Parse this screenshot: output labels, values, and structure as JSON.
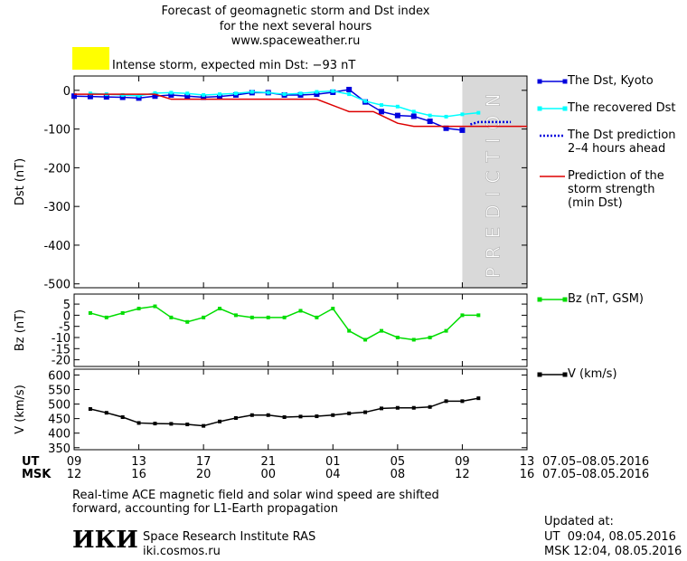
{
  "header": {
    "title": "Forecast of geomagnetic storm and Dst index",
    "subtitle": "for the next several hours",
    "url": "www.spaceweather.ru",
    "storm_label": "Intense storm, expected min Dst: −93 nT",
    "storm_color": "#ffff00"
  },
  "chart_data": [
    {
      "type": "line",
      "ylabel": "Dst (nT)",
      "xlim": [
        0,
        28
      ],
      "ylim": [
        -510,
        37
      ],
      "yticks": [
        0,
        -100,
        -200,
        -300,
        -400,
        -500
      ],
      "prediction_zone": {
        "from": 24,
        "to": 28,
        "label": "PREDICTION"
      },
      "series": [
        {
          "name": "The Dst, Kyoto",
          "color": "#0000dd",
          "marker": "square",
          "x": [
            0,
            1,
            2,
            3,
            4,
            5,
            6,
            7,
            8,
            9,
            10,
            11,
            12,
            13,
            14,
            15,
            16,
            17,
            18,
            19,
            20,
            21,
            22,
            23,
            24
          ],
          "values": [
            -15,
            -16,
            -17,
            -18,
            -20,
            -15,
            -12,
            -15,
            -18,
            -16,
            -12,
            -6,
            -6,
            -12,
            -12,
            -10,
            -5,
            2,
            -30,
            -55,
            -65,
            -67,
            -80,
            -98,
            -103
          ]
        },
        {
          "name": "The recovered Dst",
          "color": "#00ffff",
          "marker": "square",
          "x": [
            1,
            2,
            3,
            4,
            5,
            6,
            7,
            8,
            9,
            10,
            11,
            12,
            13,
            14,
            15,
            16,
            17,
            18,
            19,
            20,
            21,
            22,
            23,
            24,
            25
          ],
          "values": [
            -8,
            -10,
            -12,
            -14,
            -7,
            -6,
            -8,
            -12,
            -10,
            -8,
            -4,
            -6,
            -10,
            -8,
            -4,
            -2,
            -10,
            -28,
            -38,
            -42,
            -55,
            -65,
            -68,
            -62,
            -58
          ]
        },
        {
          "name": "The Dst prediction\n2–4 hours ahead",
          "color": "#0000dd",
          "dash": "dotted",
          "x": [
            24.5,
            25,
            27
          ],
          "values": [
            -88,
            -82,
            -82
          ]
        },
        {
          "name": "Prediction of the\nstorm strength\n(min Dst)",
          "color": "#dd0000",
          "x": [
            0,
            5,
            6,
            15,
            17,
            18.5,
            20,
            21,
            28
          ],
          "values": [
            -10,
            -10,
            -23,
            -23,
            -55,
            -55,
            -85,
            -93,
            -93
          ]
        }
      ]
    },
    {
      "type": "line",
      "ylabel": "Bz (nT)",
      "xlim": [
        0,
        28
      ],
      "ylim": [
        -23,
        9.5
      ],
      "yticks": [
        5,
        0,
        -5,
        -10,
        -15,
        -20
      ],
      "series": [
        {
          "name": "Bz (nT, GSM)",
          "color": "#00dd00",
          "marker": "square",
          "x": [
            1,
            2,
            3,
            4,
            5,
            6,
            7,
            8,
            9,
            10,
            11,
            12,
            13,
            14,
            15,
            16,
            17,
            18,
            19,
            20,
            21,
            22,
            23,
            24,
            25
          ],
          "values": [
            1,
            -1,
            1,
            3,
            4,
            -1,
            -3,
            -1,
            3,
            0,
            -1,
            -1,
            -1,
            2,
            -1,
            3,
            -7,
            -11,
            -7,
            -10,
            -11,
            -10,
            -7,
            0,
            0
          ]
        }
      ]
    },
    {
      "type": "line",
      "ylabel": "V (km/s)",
      "xlim": [
        0,
        28
      ],
      "ylim": [
        343,
        620
      ],
      "yticks": [
        600,
        550,
        500,
        450,
        400,
        350
      ],
      "xaxis_row_labels": [
        "UT",
        "MSK"
      ],
      "xticks": [
        {
          "value": 0,
          "label": "09"
        },
        {
          "value": 4,
          "label": "13"
        },
        {
          "value": 8,
          "label": "17"
        },
        {
          "value": 12,
          "label": "21"
        },
        {
          "value": 16,
          "label": "01"
        },
        {
          "value": 20,
          "label": "05"
        },
        {
          "value": 24,
          "label": "09"
        },
        {
          "value": 28,
          "label": "13"
        }
      ],
      "xticks_msk": [
        {
          "value": 0,
          "label": "12"
        },
        {
          "value": 4,
          "label": "16"
        },
        {
          "value": 8,
          "label": "20"
        },
        {
          "value": 12,
          "label": "00"
        },
        {
          "value": 16,
          "label": "04"
        },
        {
          "value": 20,
          "label": "08"
        },
        {
          "value": 24,
          "label": "12"
        },
        {
          "value": 28,
          "label": "16"
        }
      ],
      "date_range": "07.05–08.05.2016",
      "series": [
        {
          "name": "V (km/s)",
          "color": "#000000",
          "marker": "square",
          "x": [
            1,
            2,
            3,
            4,
            5,
            6,
            7,
            8,
            9,
            10,
            11,
            12,
            13,
            14,
            15,
            16,
            17,
            18,
            19,
            20,
            21,
            22,
            23,
            24,
            25
          ],
          "values": [
            483,
            470,
            455,
            435,
            433,
            432,
            430,
            425,
            440,
            452,
            462,
            462,
            455,
            457,
            458,
            462,
            468,
            472,
            485,
            487,
            487,
            490,
            510,
            510,
            520
          ]
        }
      ]
    }
  ],
  "footer": {
    "note": "Real-time ACE magnetic field and solar wind speed are shifted\nforward, accounting for L1-Earth propagation",
    "logo": "ИКИ",
    "institute": "Space Research Institute RAS",
    "site": "iki.cosmos.ru",
    "updated": "Updated at:",
    "updated_ut": "UT  09:04, 08.05.2016",
    "updated_msk": "MSK 12:04, 08.05.2016"
  }
}
